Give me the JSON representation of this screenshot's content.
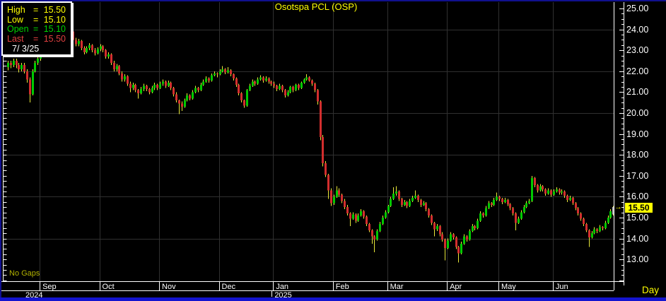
{
  "window": {
    "title": "Osotspa PCL (OSP)",
    "timeframe_label": "Day",
    "no_gaps_label": "No Gaps",
    "last_price_tag": "15.50"
  },
  "info_box": {
    "rows": [
      {
        "key": "high",
        "label": "High",
        "value": "15.50",
        "color": "#ffff00"
      },
      {
        "key": "low",
        "label": "Low",
        "value": "15.10",
        "color": "#ffff00"
      },
      {
        "key": "open",
        "label": "Open",
        "value": "15.10",
        "color": "#00d400"
      },
      {
        "key": "last",
        "label": "Last",
        "value": "15.50",
        "color": "#e04040"
      }
    ],
    "equals_sign": "=",
    "date": "7/ 3/25"
  },
  "price_axis": {
    "labels": [
      "25.00",
      "24.00",
      "23.00",
      "22.00",
      "21.00",
      "20.00",
      "19.00",
      "18.00",
      "17.00",
      "16.00",
      "15.50",
      "15.00",
      "14.00",
      "13.00"
    ],
    "label_values": [
      25,
      24,
      23,
      22,
      21,
      20,
      19,
      18,
      17,
      16,
      15.5,
      15,
      14,
      13
    ]
  },
  "time_axis": {
    "months": [
      {
        "label": "Sep",
        "start_index": 12
      },
      {
        "label": "Oct",
        "start_index": 34
      },
      {
        "label": "Nov",
        "start_index": 56
      },
      {
        "label": "Dec",
        "start_index": 78
      },
      {
        "label": "Jan",
        "start_index": 98
      },
      {
        "label": "Feb",
        "start_index": 120
      },
      {
        "label": "Mar",
        "start_index": 140
      },
      {
        "label": "Apr",
        "start_index": 162
      },
      {
        "label": "May",
        "start_index": 181
      },
      {
        "label": "Jun",
        "start_index": 201
      }
    ],
    "years": [
      {
        "label": "2024",
        "x": 36
      },
      {
        "label": "2025",
        "start_index": 98
      }
    ]
  },
  "colors": {
    "up": "#00ca00",
    "down": "#d32e2e",
    "wick": "#e8e83a",
    "current_bar": "#b9b9b9",
    "grid": "#303030",
    "axis": "#ffffff",
    "title": "#ffff00",
    "tag_bg": "#ffff00",
    "window_border_top": "#10108e",
    "window_border_bottom": "#1414cf"
  },
  "chart_data": {
    "type": "candlestick",
    "title": "Osotspa PCL (OSP)",
    "period": "Day",
    "note": "No Gaps",
    "last_price": 15.5,
    "session_high": 15.5,
    "session_low": 15.1,
    "session_open": 15.1,
    "session_date": "7/ 3/25",
    "y_axis_range": [
      11.9,
      25.25
    ],
    "y_gridline_prices": [
      24,
      22,
      20,
      18,
      16,
      14
    ],
    "y_tick_step": 0.25,
    "x_range_months": "Aug 2024 - Jul 2025",
    "current_bar_is_gray": true,
    "ohlc": [
      [
        22.2,
        22.5,
        22.05,
        22.4
      ],
      [
        22.4,
        22.5,
        22.15,
        22.3
      ],
      [
        22.3,
        22.6,
        22.2,
        22.5
      ],
      [
        22.5,
        22.6,
        22.15,
        22.3
      ],
      [
        22.3,
        22.4,
        21.95,
        22.1
      ],
      [
        22.1,
        22.4,
        22.0,
        22.3
      ],
      [
        22.3,
        22.4,
        21.9,
        22.0
      ],
      [
        22.0,
        22.1,
        21.45,
        21.6
      ],
      [
        21.6,
        21.7,
        20.5,
        20.9
      ],
      [
        20.9,
        22.1,
        20.85,
        22.0
      ],
      [
        22.0,
        22.5,
        21.95,
        22.4
      ],
      [
        22.4,
        22.7,
        22.3,
        22.6
      ],
      [
        22.6,
        23.0,
        22.5,
        22.9
      ],
      [
        22.9,
        23.3,
        22.8,
        23.2
      ],
      [
        23.2,
        23.3,
        22.85,
        23.0
      ],
      [
        23.0,
        23.5,
        22.95,
        23.4
      ],
      [
        23.4,
        23.8,
        23.3,
        23.7
      ],
      [
        23.7,
        23.8,
        23.35,
        23.5
      ],
      [
        23.5,
        24.0,
        23.45,
        23.9
      ],
      [
        23.9,
        24.35,
        23.8,
        24.2
      ],
      [
        24.2,
        24.45,
        23.9,
        24.0
      ],
      [
        24.0,
        24.25,
        23.9,
        24.15
      ],
      [
        24.15,
        24.2,
        23.7,
        23.8
      ],
      [
        23.8,
        24.0,
        23.7,
        23.9
      ],
      [
        23.9,
        23.95,
        23.4,
        23.5
      ],
      [
        23.5,
        23.6,
        23.2,
        23.3
      ],
      [
        23.3,
        23.55,
        23.2,
        23.45
      ],
      [
        23.45,
        23.5,
        23.0,
        23.1
      ],
      [
        23.1,
        23.2,
        22.8,
        22.9
      ],
      [
        22.9,
        23.2,
        22.85,
        23.1
      ],
      [
        23.1,
        23.35,
        23.0,
        23.25
      ],
      [
        23.25,
        23.3,
        22.9,
        23.0
      ],
      [
        23.0,
        23.1,
        22.75,
        22.85
      ],
      [
        22.85,
        23.15,
        22.8,
        23.05
      ],
      [
        23.05,
        23.3,
        22.95,
        23.2
      ],
      [
        23.2,
        23.25,
        22.9,
        23.0
      ],
      [
        23.0,
        23.05,
        22.6,
        22.7
      ],
      [
        22.7,
        22.9,
        22.6,
        22.8
      ],
      [
        22.8,
        22.85,
        22.3,
        22.4
      ],
      [
        22.4,
        22.5,
        22.0,
        22.1
      ],
      [
        22.1,
        22.35,
        22.0,
        22.25
      ],
      [
        22.25,
        22.3,
        21.8,
        21.9
      ],
      [
        21.9,
        22.0,
        21.5,
        21.6
      ],
      [
        21.6,
        21.85,
        21.5,
        21.75
      ],
      [
        21.75,
        21.8,
        21.3,
        21.4
      ],
      [
        21.4,
        21.5,
        21.0,
        21.2
      ],
      [
        21.2,
        21.45,
        21.1,
        21.35
      ],
      [
        21.35,
        21.4,
        21.0,
        21.1
      ],
      [
        21.1,
        21.15,
        20.7,
        20.95
      ],
      [
        20.95,
        21.25,
        20.9,
        21.15
      ],
      [
        21.15,
        21.4,
        21.05,
        21.3
      ],
      [
        21.3,
        21.35,
        21.05,
        21.15
      ],
      [
        21.15,
        21.2,
        20.9,
        21.0
      ],
      [
        21.0,
        21.3,
        20.95,
        21.2
      ],
      [
        21.2,
        21.45,
        21.1,
        21.35
      ],
      [
        21.35,
        21.4,
        21.1,
        21.2
      ],
      [
        21.2,
        21.5,
        21.15,
        21.4
      ],
      [
        21.4,
        21.6,
        21.3,
        21.5
      ],
      [
        21.5,
        21.55,
        21.2,
        21.3
      ],
      [
        21.3,
        21.55,
        21.25,
        21.45
      ],
      [
        21.45,
        21.5,
        21.1,
        21.2
      ],
      [
        21.2,
        21.25,
        20.8,
        20.9
      ],
      [
        20.9,
        21.0,
        20.5,
        20.6
      ],
      [
        20.6,
        20.65,
        19.95,
        20.45
      ],
      [
        20.45,
        20.55,
        20.1,
        20.3
      ],
      [
        20.3,
        20.7,
        20.25,
        20.6
      ],
      [
        20.6,
        20.95,
        20.55,
        20.85
      ],
      [
        20.85,
        20.9,
        20.6,
        20.7
      ],
      [
        20.7,
        21.1,
        20.65,
        21.0
      ],
      [
        21.0,
        21.3,
        20.95,
        21.2
      ],
      [
        21.2,
        21.25,
        21.0,
        21.1
      ],
      [
        21.1,
        21.45,
        21.05,
        21.35
      ],
      [
        21.35,
        21.6,
        21.3,
        21.5
      ],
      [
        21.5,
        21.75,
        21.45,
        21.65
      ],
      [
        21.65,
        21.7,
        21.45,
        21.55
      ],
      [
        21.55,
        21.9,
        21.5,
        21.8
      ],
      [
        21.8,
        22.0,
        21.75,
        21.9
      ],
      [
        21.9,
        21.95,
        21.7,
        21.85
      ],
      [
        21.85,
        22.1,
        21.8,
        22.0
      ],
      [
        22.0,
        22.25,
        21.95,
        22.1
      ],
      [
        22.1,
        22.15,
        21.85,
        21.95
      ],
      [
        21.95,
        22.2,
        21.9,
        22.05
      ],
      [
        22.05,
        22.1,
        21.75,
        21.85
      ],
      [
        21.85,
        21.9,
        21.55,
        21.65
      ],
      [
        21.65,
        21.7,
        21.25,
        21.35
      ],
      [
        21.35,
        21.4,
        20.85,
        20.95
      ],
      [
        20.95,
        21.0,
        20.5,
        20.6
      ],
      [
        20.6,
        20.65,
        20.25,
        20.35
      ],
      [
        20.35,
        21.15,
        20.3,
        21.1
      ],
      [
        21.1,
        21.4,
        21.05,
        21.3
      ],
      [
        21.3,
        21.6,
        21.25,
        21.5
      ],
      [
        21.5,
        21.55,
        21.3,
        21.4
      ],
      [
        21.4,
        21.7,
        21.35,
        21.6
      ],
      [
        21.6,
        21.8,
        21.55,
        21.7
      ],
      [
        21.7,
        21.75,
        21.45,
        21.55
      ],
      [
        21.55,
        21.75,
        21.5,
        21.65
      ],
      [
        21.65,
        21.7,
        21.4,
        21.5
      ],
      [
        21.5,
        21.55,
        21.3,
        21.4
      ],
      [
        21.4,
        21.5,
        21.2,
        21.3
      ],
      [
        21.3,
        21.35,
        21.05,
        21.15
      ],
      [
        21.15,
        21.4,
        21.1,
        21.3
      ],
      [
        21.3,
        21.35,
        21.0,
        21.1
      ],
      [
        21.1,
        21.15,
        20.75,
        20.85
      ],
      [
        20.85,
        21.1,
        20.8,
        21.0
      ],
      [
        21.0,
        21.3,
        20.95,
        21.25
      ],
      [
        21.25,
        21.3,
        21.0,
        21.1
      ],
      [
        21.1,
        21.4,
        21.05,
        21.35
      ],
      [
        21.35,
        21.4,
        21.1,
        21.2
      ],
      [
        21.2,
        21.5,
        21.15,
        21.45
      ],
      [
        21.45,
        21.65,
        21.4,
        21.6
      ],
      [
        21.6,
        21.85,
        21.55,
        21.7
      ],
      [
        21.7,
        21.75,
        21.5,
        21.55
      ],
      [
        21.55,
        21.6,
        21.3,
        21.4
      ],
      [
        21.4,
        21.45,
        21.0,
        21.1
      ],
      [
        21.1,
        21.15,
        20.4,
        20.55
      ],
      [
        20.55,
        20.6,
        18.7,
        18.85
      ],
      [
        18.85,
        18.95,
        17.45,
        17.6
      ],
      [
        17.6,
        17.7,
        16.95,
        17.05
      ],
      [
        17.05,
        17.1,
        15.9,
        16.3
      ],
      [
        16.3,
        16.4,
        15.55,
        15.7
      ],
      [
        15.7,
        16.1,
        15.6,
        16.0
      ],
      [
        16.0,
        16.5,
        15.95,
        16.3
      ],
      [
        16.3,
        16.4,
        16.0,
        16.1
      ],
      [
        16.1,
        16.15,
        15.7,
        15.8
      ],
      [
        15.8,
        15.9,
        15.4,
        15.5
      ],
      [
        15.5,
        15.6,
        15.1,
        15.2
      ],
      [
        15.2,
        15.25,
        14.6,
        14.95
      ],
      [
        14.95,
        15.25,
        14.9,
        15.15
      ],
      [
        15.15,
        15.2,
        14.75,
        14.85
      ],
      [
        14.85,
        15.2,
        14.8,
        15.1
      ],
      [
        15.1,
        15.4,
        15.05,
        15.3
      ],
      [
        15.3,
        15.35,
        14.95,
        15.05
      ],
      [
        15.05,
        15.1,
        14.6,
        14.7
      ],
      [
        14.7,
        14.75,
        14.3,
        14.4
      ],
      [
        14.4,
        14.45,
        13.75,
        14.1
      ],
      [
        14.1,
        14.15,
        13.35,
        13.95
      ],
      [
        13.95,
        14.45,
        13.9,
        14.35
      ],
      [
        14.35,
        14.8,
        14.3,
        14.7
      ],
      [
        14.7,
        15.1,
        14.65,
        15.0
      ],
      [
        15.0,
        15.35,
        14.95,
        15.25
      ],
      [
        15.25,
        15.6,
        15.2,
        15.55
      ],
      [
        15.55,
        16.0,
        15.5,
        15.9
      ],
      [
        15.9,
        16.45,
        15.85,
        16.15
      ],
      [
        16.15,
        16.5,
        16.05,
        16.25
      ],
      [
        16.25,
        16.3,
        15.8,
        15.9
      ],
      [
        15.9,
        15.95,
        15.5,
        15.6
      ],
      [
        15.6,
        15.85,
        15.55,
        15.75
      ],
      [
        15.75,
        15.8,
        15.45,
        15.55
      ],
      [
        15.55,
        15.9,
        15.5,
        15.8
      ],
      [
        15.8,
        16.05,
        15.75,
        15.95
      ],
      [
        15.95,
        16.3,
        15.9,
        16.05
      ],
      [
        16.05,
        16.1,
        15.75,
        15.85
      ],
      [
        15.85,
        15.9,
        15.5,
        15.6
      ],
      [
        15.6,
        15.8,
        15.55,
        15.7
      ],
      [
        15.7,
        15.75,
        15.3,
        15.4
      ],
      [
        15.4,
        15.45,
        15.0,
        15.1
      ],
      [
        15.1,
        15.15,
        14.65,
        14.75
      ],
      [
        14.75,
        14.8,
        14.1,
        14.45
      ],
      [
        14.45,
        14.7,
        14.35,
        14.6
      ],
      [
        14.6,
        14.65,
        14.1,
        14.2
      ],
      [
        14.2,
        14.3,
        13.85,
        13.95
      ],
      [
        13.95,
        14.0,
        12.95,
        13.55
      ],
      [
        13.55,
        14.0,
        13.5,
        13.9
      ],
      [
        13.9,
        14.3,
        13.85,
        14.2
      ],
      [
        14.2,
        14.25,
        13.95,
        14.05
      ],
      [
        14.05,
        14.1,
        13.5,
        13.6
      ],
      [
        13.6,
        13.65,
        12.85,
        13.3
      ],
      [
        13.3,
        13.85,
        13.25,
        13.75
      ],
      [
        13.75,
        14.2,
        13.7,
        14.1
      ],
      [
        14.1,
        14.15,
        13.85,
        13.95
      ],
      [
        13.95,
        14.45,
        13.9,
        14.35
      ],
      [
        14.35,
        14.7,
        14.3,
        14.6
      ],
      [
        14.6,
        14.65,
        14.4,
        14.5
      ],
      [
        14.5,
        14.95,
        14.45,
        14.85
      ],
      [
        14.85,
        15.3,
        14.8,
        15.2
      ],
      [
        15.2,
        15.25,
        15.0,
        15.1
      ],
      [
        15.1,
        15.55,
        15.05,
        15.45
      ],
      [
        15.45,
        15.8,
        15.4,
        15.7
      ],
      [
        15.7,
        15.75,
        15.5,
        15.6
      ],
      [
        15.6,
        15.95,
        15.55,
        15.85
      ],
      [
        15.85,
        16.2,
        15.8,
        16.0
      ],
      [
        16.0,
        16.05,
        15.8,
        15.9
      ],
      [
        15.9,
        15.95,
        15.65,
        15.75
      ],
      [
        15.75,
        15.95,
        15.7,
        15.85
      ],
      [
        15.85,
        15.9,
        15.55,
        15.65
      ],
      [
        15.65,
        15.7,
        15.35,
        15.45
      ],
      [
        15.45,
        15.5,
        15.1,
        15.2
      ],
      [
        15.2,
        15.25,
        14.4,
        14.75
      ],
      [
        14.75,
        15.05,
        14.7,
        14.95
      ],
      [
        14.95,
        15.35,
        14.9,
        15.25
      ],
      [
        15.25,
        15.6,
        15.2,
        15.5
      ],
      [
        15.5,
        15.8,
        15.45,
        15.7
      ],
      [
        15.7,
        15.9,
        15.65,
        15.8
      ],
      [
        15.8,
        17.0,
        15.75,
        16.9
      ],
      [
        16.9,
        16.95,
        16.45,
        16.55
      ],
      [
        16.55,
        16.6,
        16.2,
        16.3
      ],
      [
        16.3,
        16.6,
        16.25,
        16.5
      ],
      [
        16.5,
        16.55,
        16.25,
        16.35
      ],
      [
        16.35,
        16.4,
        16.05,
        16.15
      ],
      [
        16.15,
        16.4,
        16.1,
        16.3
      ],
      [
        16.3,
        16.35,
        16.0,
        16.1
      ],
      [
        16.1,
        16.35,
        16.05,
        16.25
      ],
      [
        16.25,
        16.45,
        16.2,
        16.35
      ],
      [
        16.35,
        16.4,
        16.1,
        16.2
      ],
      [
        16.2,
        16.35,
        16.1,
        16.25
      ],
      [
        16.25,
        16.3,
        15.95,
        16.05
      ],
      [
        16.05,
        16.1,
        15.75,
        15.85
      ],
      [
        15.85,
        16.05,
        15.8,
        15.95
      ],
      [
        15.95,
        16.0,
        15.6,
        15.7
      ],
      [
        15.7,
        15.75,
        15.35,
        15.45
      ],
      [
        15.45,
        15.5,
        15.1,
        15.2
      ],
      [
        15.2,
        15.25,
        14.85,
        14.95
      ],
      [
        14.95,
        15.0,
        14.6,
        14.7
      ],
      [
        14.7,
        14.75,
        14.3,
        14.4
      ],
      [
        14.4,
        14.45,
        13.6,
        14.05
      ],
      [
        14.05,
        14.35,
        14.0,
        14.25
      ],
      [
        14.25,
        14.55,
        14.2,
        14.45
      ],
      [
        14.45,
        14.5,
        14.25,
        14.35
      ],
      [
        14.35,
        14.65,
        14.3,
        14.55
      ],
      [
        14.55,
        14.6,
        14.4,
        14.5
      ],
      [
        14.5,
        14.85,
        14.45,
        14.75
      ],
      [
        14.75,
        15.1,
        14.7,
        15.0
      ],
      [
        15.0,
        15.4,
        14.95,
        15.3
      ],
      [
        15.15,
        15.55,
        15.1,
        15.5
      ]
    ]
  }
}
